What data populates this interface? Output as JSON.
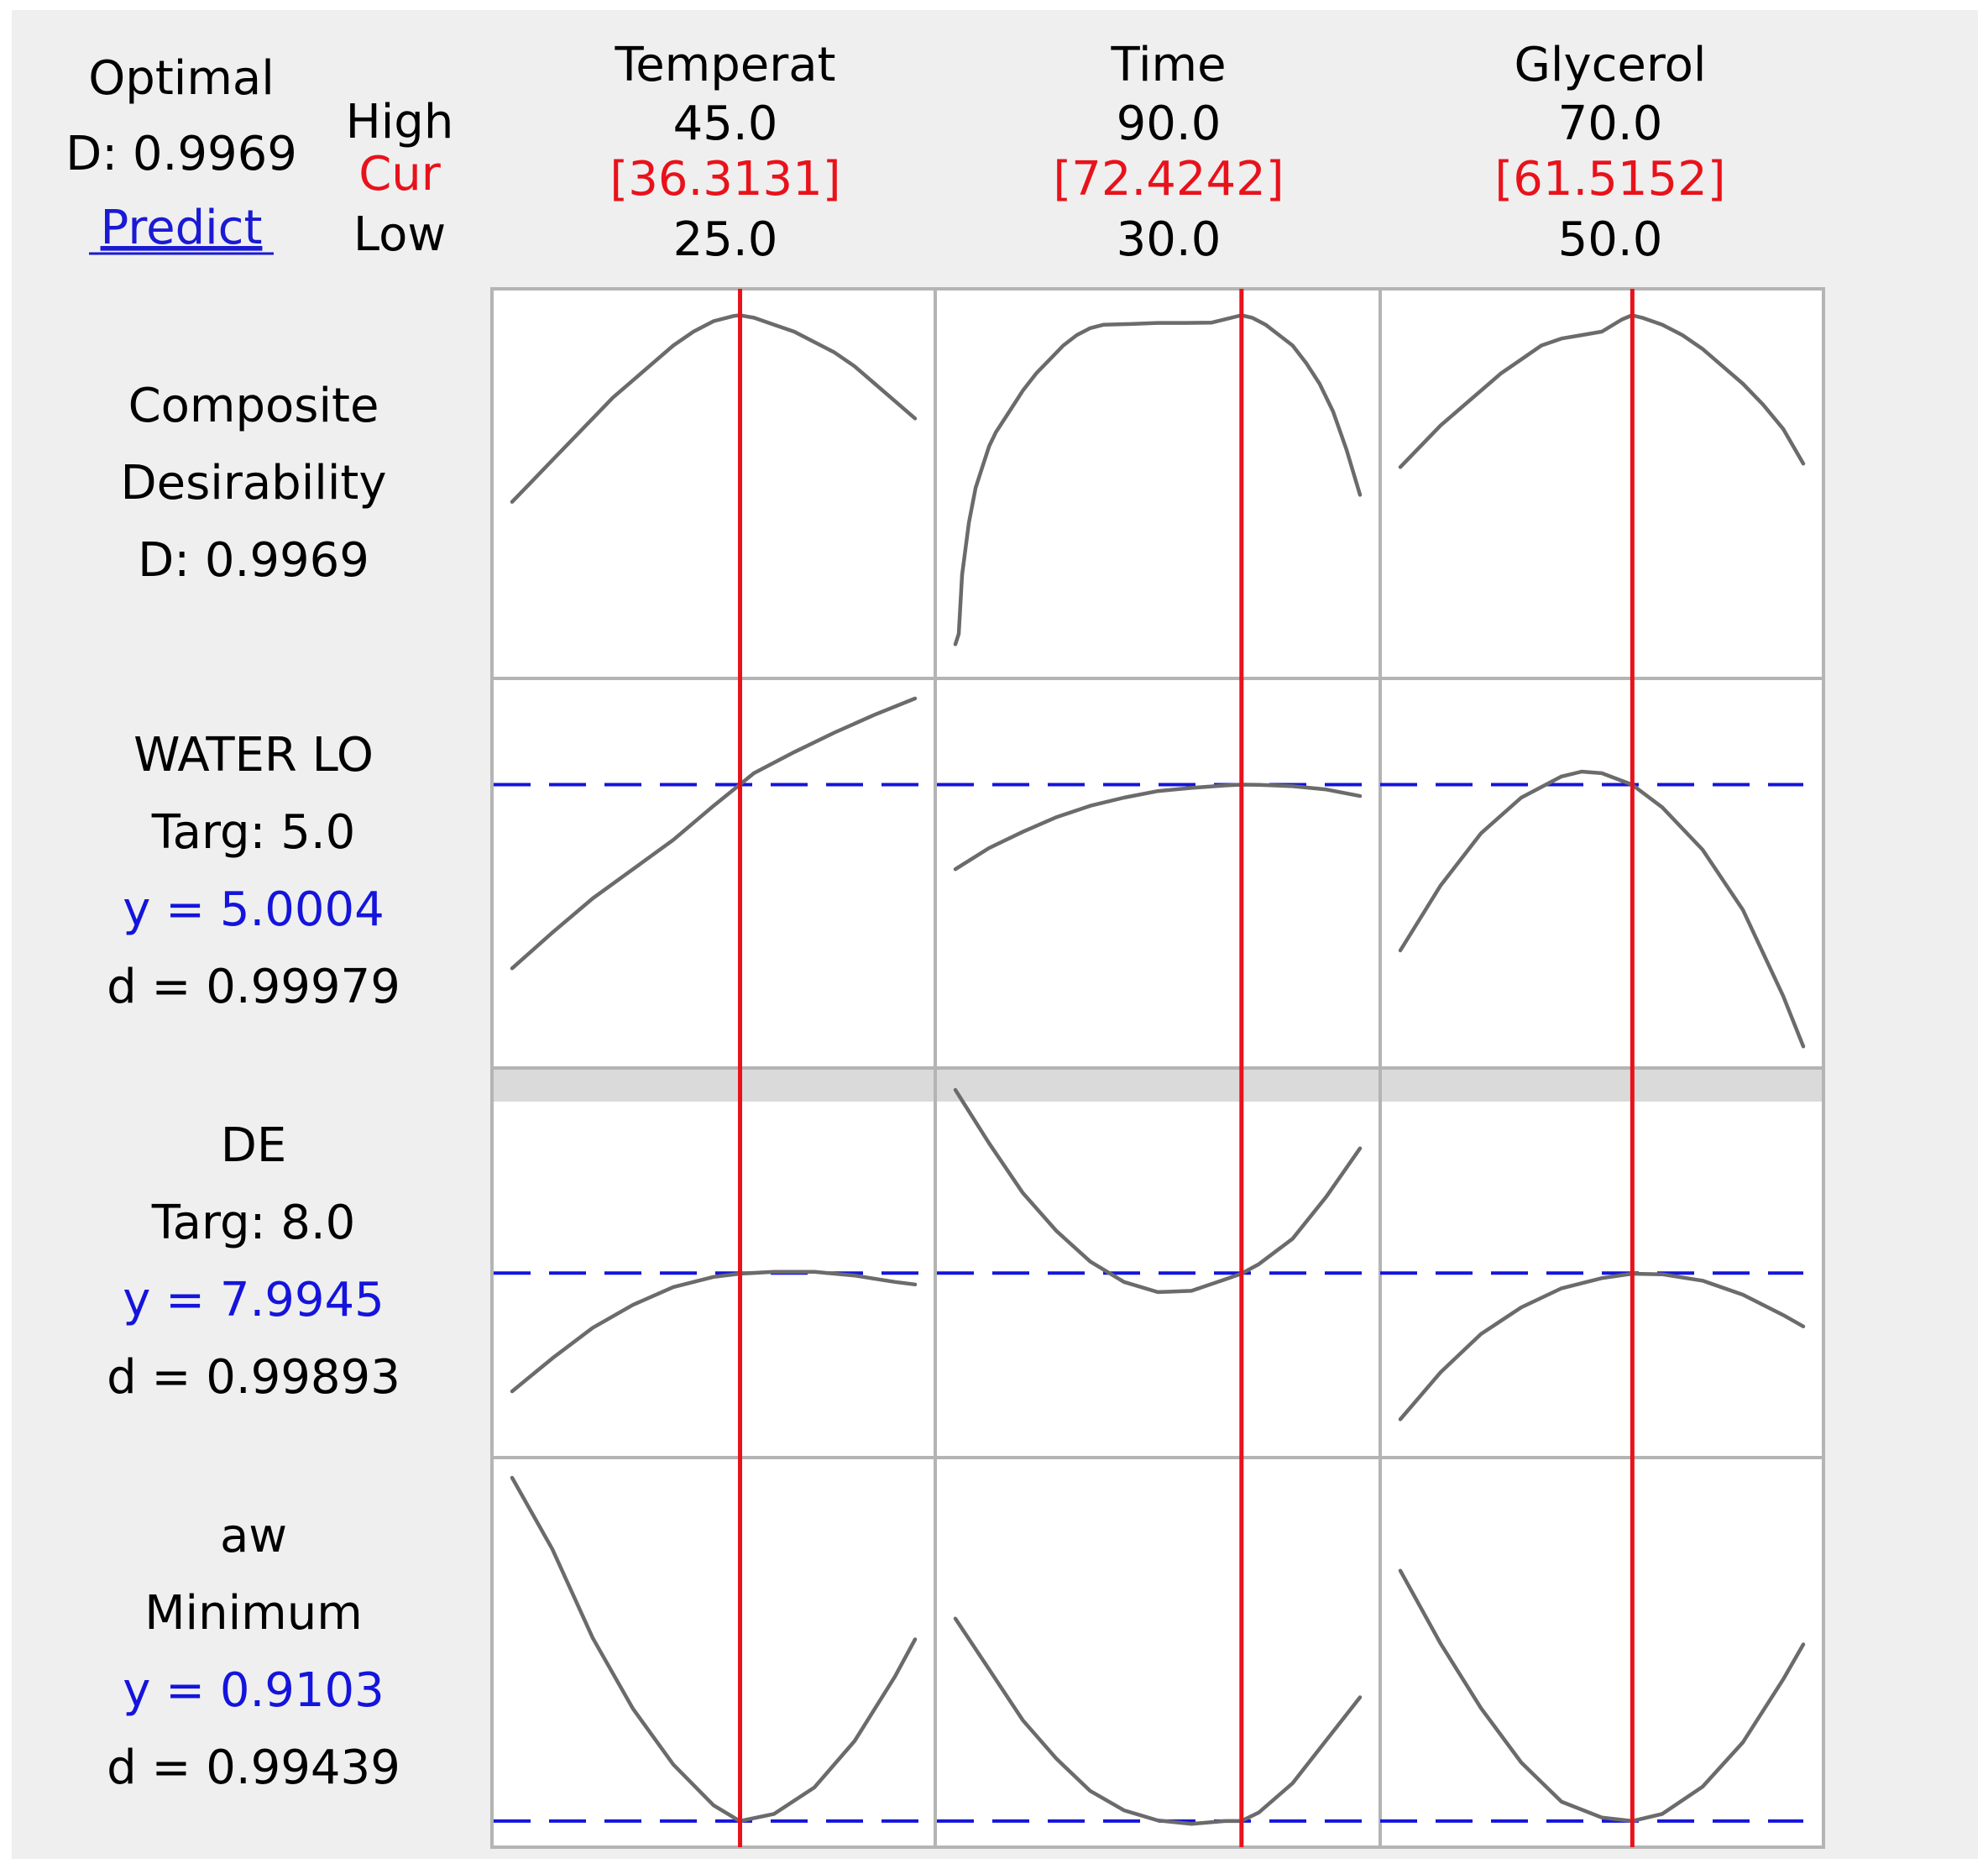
{
  "header": {
    "optimal_label": "Optimal",
    "optimal_d": "D: 0.9969",
    "predict_link": "Predict",
    "high_label": "High",
    "cur_label": "Cur",
    "low_label": "Low"
  },
  "colors": {
    "panel_bg": "#efefef",
    "cur_red": "#e8121b",
    "target_blue": "#1414dc",
    "link_blue": "#1a1ad4",
    "curve_gray": "#6b6b6b",
    "grid_border": "#b4b4b4",
    "separator_band": "#dadada"
  },
  "chart_data": {
    "type": "line",
    "title": "",
    "factors": [
      {
        "name": "Temperat",
        "high": "45.0",
        "cur": "[36.3131]",
        "low": "25.0",
        "min": 25,
        "max": 45,
        "current": 36.3131
      },
      {
        "name": "Time",
        "high": "90.0",
        "cur": "[72.4242]",
        "low": "30.0",
        "min": 30,
        "max": 90,
        "current": 72.4242
      },
      {
        "name": "Glycerol",
        "high": "70.0",
        "cur": "[61.5152]",
        "low": "50.0",
        "min": 50,
        "max": 70,
        "current": 61.5152
      }
    ],
    "responses": [
      {
        "lines": [
          "Composite",
          "Desirability",
          "D: 0.9969"
        ],
        "line_colors": [
          "black",
          "black",
          "black"
        ],
        "target": null,
        "curves": [
          {
            "x": [
              25,
              26,
              27,
              28,
              29,
              30,
              31,
              32,
              33,
              34,
              35,
              36,
              36.3,
              37,
              38,
              39,
              40,
              41,
              42,
              43,
              44,
              45
            ],
            "y": [
              0.46,
              0.52,
              0.58,
              0.64,
              0.7,
              0.76,
              0.81,
              0.86,
              0.91,
              0.95,
              0.98,
              0.995,
              0.997,
              0.99,
              0.97,
              0.95,
              0.92,
              0.89,
              0.85,
              0.8,
              0.75,
              0.7
            ]
          },
          {
            "x": [
              30,
              30.5,
              31,
              32,
              33,
              34,
              35,
              36,
              38,
              40,
              42,
              44,
              46,
              48,
              50,
              52,
              56,
              60,
              64,
              68,
              72.4,
              74,
              76,
              78,
              80,
              82,
              84,
              86,
              88,
              90
            ],
            "y": [
              0.05,
              0.08,
              0.25,
              0.4,
              0.5,
              0.56,
              0.62,
              0.66,
              0.72,
              0.78,
              0.83,
              0.87,
              0.91,
              0.94,
              0.96,
              0.97,
              0.972,
              0.975,
              0.975,
              0.976,
              0.997,
              0.99,
              0.97,
              0.94,
              0.91,
              0.86,
              0.8,
              0.72,
              0.61,
              0.48
            ]
          },
          {
            "x": [
              50,
              51,
              52,
              53,
              54,
              55,
              56,
              57,
              58,
              59,
              60,
              61,
              61.5,
              62,
              63,
              64,
              65,
              66,
              67,
              68,
              69,
              70
            ],
            "y": [
              0.56,
              0.62,
              0.68,
              0.73,
              0.78,
              0.83,
              0.87,
              0.91,
              0.93,
              0.94,
              0.95,
              0.985,
              0.997,
              0.99,
              0.97,
              0.94,
              0.9,
              0.85,
              0.8,
              0.74,
              0.67,
              0.57
            ]
          }
        ]
      },
      {
        "lines": [
          "WATER LO",
          "Targ: 5.0",
          "y = 5.0004",
          "d = 0.99979"
        ],
        "line_colors": [
          "black",
          "black",
          "blue",
          "black"
        ],
        "target": 5.0,
        "curves": [
          {
            "x": [
              25,
              27,
              29,
              31,
              33,
              35,
              36.3,
              37,
              39,
              41,
              43,
              45
            ],
            "y": [
              3.87,
              4.09,
              4.3,
              4.48,
              4.66,
              4.87,
              5.0,
              5.07,
              5.2,
              5.32,
              5.43,
              5.53
            ]
          },
          {
            "x": [
              30,
              35,
              40,
              45,
              50,
              55,
              60,
              65,
              70,
              72.4,
              75,
              80,
              85,
              90
            ],
            "y": [
              4.48,
              4.61,
              4.71,
              4.8,
              4.87,
              4.92,
              4.96,
              4.98,
              4.995,
              5.0,
              4.999,
              4.99,
              4.97,
              4.93
            ]
          },
          {
            "x": [
              50,
              52,
              54,
              56,
              58,
              59,
              60,
              61.5,
              63,
              65,
              67,
              69,
              70
            ],
            "y": [
              3.98,
              4.38,
              4.7,
              4.92,
              5.05,
              5.08,
              5.07,
              5.0,
              4.86,
              4.6,
              4.23,
              3.7,
              3.39
            ]
          }
        ]
      },
      {
        "lines": [
          "DE",
          "Targ: 8.0",
          "y = 7.9945",
          "d = 0.99893"
        ],
        "line_colors": [
          "black",
          "black",
          "blue",
          "black"
        ],
        "target": 8.0,
        "curves": [
          {
            "x": [
              25,
              27,
              29,
              31,
              33,
              35,
              36.3,
              38,
              40,
              42,
              44,
              45
            ],
            "y": [
              7.07,
              7.33,
              7.57,
              7.75,
              7.89,
              7.97,
              7.995,
              8.01,
              8.01,
              7.98,
              7.93,
              7.91
            ]
          },
          {
            "x": [
              30,
              35,
              40,
              45,
              50,
              55,
              60,
              65,
              70,
              72.4,
              75,
              80,
              85,
              90
            ],
            "y": [
              9.44,
              9.02,
              8.63,
              8.33,
              8.09,
              7.93,
              7.85,
              7.86,
              7.95,
              7.995,
              8.07,
              8.27,
              8.6,
              8.98
            ]
          },
          {
            "x": [
              50,
              52,
              54,
              56,
              58,
              60,
              61.5,
              63,
              65,
              67,
              69,
              70
            ],
            "y": [
              6.85,
              7.22,
              7.52,
              7.73,
              7.88,
              7.96,
              7.995,
              7.99,
              7.94,
              7.83,
              7.67,
              7.58
            ]
          }
        ]
      },
      {
        "lines": [
          "aw",
          "Minimum",
          "y = 0.9103",
          "d = 0.99439"
        ],
        "line_colors": [
          "black",
          "black",
          "blue",
          "black"
        ],
        "target": 0.9103,
        "curves": [
          {
            "x": [
              25,
              27,
              29,
              31,
              33,
              35,
              36.3,
              38,
              40,
              42,
              44,
              45
            ],
            "y": [
              0.9583,
              0.9483,
              0.9359,
              0.926,
              0.9182,
              0.9125,
              0.9103,
              0.9113,
              0.915,
              0.9215,
              0.9305,
              0.9357
            ]
          },
          {
            "x": [
              30,
              35,
              40,
              45,
              50,
              55,
              60,
              65,
              70,
              72.4,
              75,
              80,
              85,
              90
            ],
            "y": [
              0.9386,
              0.9315,
              0.9244,
              0.919,
              0.9145,
              0.9118,
              0.9104,
              0.9099,
              0.9103,
              0.9103,
              0.9115,
              0.9156,
              0.9216,
              0.9276
            ]
          },
          {
            "x": [
              50,
              52,
              54,
              56,
              58,
              60,
              61.5,
              63,
              65,
              67,
              69,
              70
            ],
            "y": [
              0.9453,
              0.9351,
              0.9261,
              0.9185,
              0.913,
              0.9108,
              0.9103,
              0.9113,
              0.9151,
              0.9213,
              0.9301,
              0.935
            ]
          }
        ]
      }
    ]
  }
}
